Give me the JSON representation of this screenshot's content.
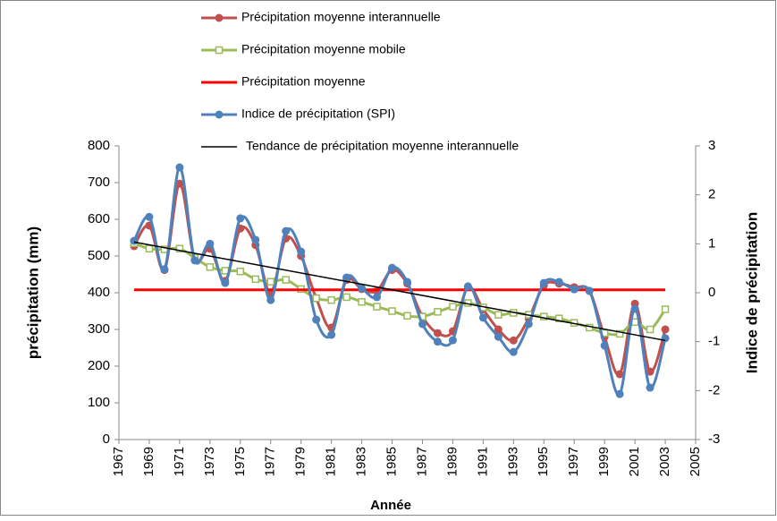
{
  "chart_data": {
    "type": "line",
    "x": [
      1968,
      1969,
      1970,
      1971,
      1972,
      1973,
      1974,
      1975,
      1976,
      1977,
      1978,
      1979,
      1980,
      1981,
      1982,
      1983,
      1984,
      1985,
      1986,
      1987,
      1988,
      1989,
      1990,
      1991,
      1992,
      1993,
      1994,
      1995,
      1996,
      1997,
      1998,
      1999,
      2000,
      2001,
      2002,
      2003
    ],
    "series": [
      {
        "name": "Précipitation moyenne interannuelle",
        "color": "#c0504d",
        "marker": "circle",
        "smooth": true,
        "values": [
          527,
          583,
          462,
          697,
          490,
          520,
          432,
          575,
          530,
          400,
          548,
          500,
          385,
          305,
          435,
          410,
          405,
          462,
          425,
          335,
          290,
          295,
          415,
          355,
          300,
          270,
          330,
          420,
          425,
          415,
          405,
          280,
          178,
          370,
          185,
          300
        ]
      },
      {
        "name": "Précipitation moyenne mobile",
        "color": "#9bbb59",
        "marker": "square",
        "smooth": true,
        "values": [
          535,
          520,
          518,
          520,
          495,
          470,
          460,
          458,
          437,
          430,
          435,
          410,
          385,
          380,
          388,
          375,
          362,
          350,
          337,
          335,
          348,
          362,
          372,
          360,
          340,
          345,
          340,
          335,
          330,
          318,
          305,
          290,
          288,
          320,
          300,
          355
        ]
      },
      {
        "name": "Précipitation moyenne",
        "color": "#ff0000",
        "marker": "none",
        "smooth": false,
        "x": [
          1968,
          2003
        ],
        "values": [
          408,
          408
        ]
      },
      {
        "name": "Indice de précipitation (SPI)",
        "color": "#4f81bd",
        "marker": "circle",
        "smooth": true,
        "axis": "y2",
        "values": [
          1.06,
          1.55,
          0.48,
          2.56,
          0.66,
          1.0,
          0.2,
          1.52,
          1.08,
          -0.15,
          1.26,
          0.84,
          -0.55,
          -0.86,
          0.31,
          0.09,
          -0.09,
          0.51,
          0.22,
          -0.64,
          -1.0,
          -0.97,
          0.13,
          -0.51,
          -0.9,
          -1.21,
          -0.64,
          0.2,
          0.22,
          0.07,
          0.04,
          -1.08,
          -2.07,
          -0.33,
          -1.94,
          -0.93
        ]
      },
      {
        "name": "Tendance de précipitation moyenne interannuelle",
        "color": "#000000",
        "marker": "none",
        "smooth": false,
        "x": [
          1968,
          2003
        ],
        "values": [
          538,
          270
        ]
      }
    ],
    "xlim": [
      1967,
      2005
    ],
    "xticks": [
      1967,
      1969,
      1971,
      1973,
      1975,
      1977,
      1979,
      1981,
      1983,
      1985,
      1987,
      1989,
      1991,
      1993,
      1995,
      1997,
      1999,
      2001,
      2003,
      2005
    ],
    "ylim": [
      0,
      800
    ],
    "yticks": [
      0,
      100,
      200,
      300,
      400,
      500,
      600,
      700,
      800
    ],
    "y2lim": [
      -3,
      3
    ],
    "y2ticks": [
      -3,
      -2,
      -1,
      0,
      1,
      2,
      3
    ],
    "xlabel": "Année",
    "ylabel": "précipitation (mm)",
    "y2label": "Indice de précipitation"
  }
}
